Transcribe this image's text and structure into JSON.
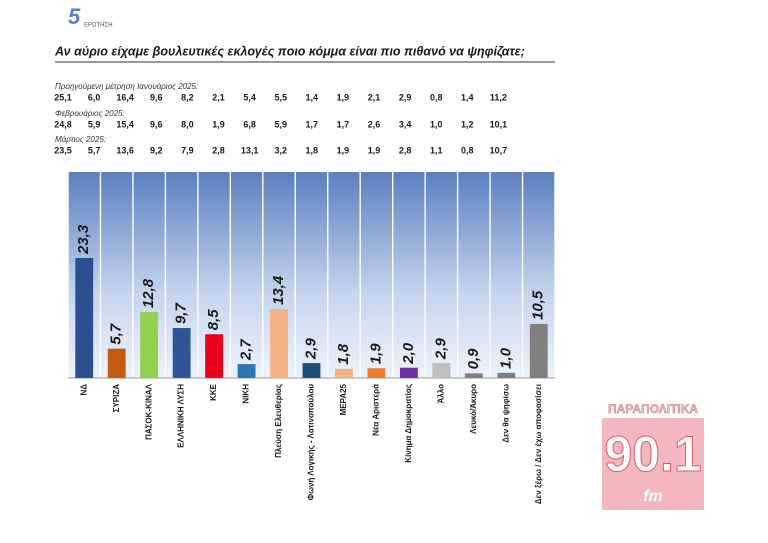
{
  "chart_data": {
    "type": "bar",
    "question_number": "5",
    "question_label": "ΕΡΩΤΗΣΗ",
    "title": "Αν αύριο είχαμε βουλευτικές εκλογές ποιο κόμμα είναι πιο πιθανό να ψηφίζατε;",
    "previous": [
      {
        "label": "Προηγούμενη μέτρηση Ιανουάριος 2025:",
        "values": [
          "25,1",
          "6,0",
          "16,4",
          "9,6",
          "8,2",
          "2,1",
          "5,4",
          "5,5",
          "1,4",
          "1,9",
          "2,1",
          "2,9",
          "0,8",
          "1,4",
          "11,2"
        ]
      },
      {
        "label": "Φεβρουάριος 2025:",
        "values": [
          "24,8",
          "5,9",
          "15,4",
          "9,6",
          "8,0",
          "1,9",
          "6,8",
          "5,9",
          "1,7",
          "1,7",
          "2,6",
          "3,4",
          "1,0",
          "1,2",
          "10,1"
        ]
      },
      {
        "label": "Μάρτιος 2025:",
        "values": [
          "23,5",
          "5,7",
          "13,6",
          "9,2",
          "7,9",
          "2,8",
          "13,1",
          "3,2",
          "1,8",
          "1,9",
          "1,9",
          "2,8",
          "1,1",
          "0,8",
          "10,7"
        ]
      }
    ],
    "categories": [
      "ΝΔ",
      "ΣΥΡΙΖΑ",
      "ΠΑΣΟΚ-ΚΙΝΑΛ",
      "ΕΛΛΗΝΙΚΗ ΛΥΣΗ",
      "ΚΚΕ",
      "ΝΙΚΗ",
      "Πλεύση Ελευθερίας",
      "Φωνή Λογικής - Λατινοπούλου",
      "ΜΕΡΑ25",
      "Νέα Αριστερά",
      "Κίνημα Δημοκρατίας",
      "Άλλο",
      "Λευκό/Άκυρο",
      "Δεν θα ψηφίσω",
      "Δεν ξέρω / Δεν έχω αποφασίσει"
    ],
    "values": [
      23.3,
      5.7,
      12.8,
      9.7,
      8.5,
      2.7,
      13.4,
      2.9,
      1.8,
      1.9,
      2.0,
      2.9,
      0.9,
      1.0,
      10.5
    ],
    "value_labels": [
      "23,3",
      "5,7",
      "12,8",
      "9,7",
      "8,5",
      "2,7",
      "13,4",
      "2,9",
      "1,8",
      "1,9",
      "2,0",
      "2,9",
      "0,9",
      "1,0",
      "10,5"
    ],
    "colors": [
      "#2e4f8f",
      "#c55a11",
      "#92d050",
      "#2f5597",
      "#e8001c",
      "#2e75b6",
      "#f4b183",
      "#1f4e79",
      "#f4b183",
      "#ed7d31",
      "#7030a0",
      "#bfbfbf",
      "#808080",
      "#808080",
      "#808080"
    ],
    "ylim": [
      0,
      40
    ],
    "logo": {
      "name": "ΠΑΡΑΠΟΛΙΤΙΚΑ",
      "frequency": "90.1",
      "unit": "fm"
    }
  }
}
